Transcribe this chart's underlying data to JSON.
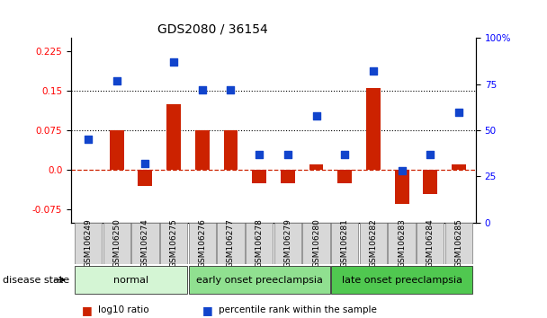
{
  "title": "GDS2080 / 36154",
  "samples": [
    "GSM106249",
    "GSM106250",
    "GSM106274",
    "GSM106275",
    "GSM106276",
    "GSM106277",
    "GSM106278",
    "GSM106279",
    "GSM106280",
    "GSM106281",
    "GSM106282",
    "GSM106283",
    "GSM106284",
    "GSM106285"
  ],
  "log10_ratio": [
    0.0,
    0.075,
    -0.03,
    0.125,
    0.075,
    0.075,
    -0.025,
    -0.025,
    0.01,
    -0.025,
    0.155,
    -0.065,
    -0.045,
    0.01
  ],
  "percentile_rank": [
    45,
    77,
    32,
    87,
    72,
    72,
    37,
    37,
    58,
    37,
    82,
    28,
    37,
    60
  ],
  "disease_groups": [
    {
      "label": "normal",
      "start": 0,
      "end": 4,
      "color": "#d4f5d4"
    },
    {
      "label": "early onset preeclampsia",
      "start": 4,
      "end": 9,
      "color": "#90e090"
    },
    {
      "label": "late onset preeclampsia",
      "start": 9,
      "end": 14,
      "color": "#50c850"
    }
  ],
  "ylim_left": [
    -0.1,
    0.25
  ],
  "ylim_right": [
    0,
    100
  ],
  "yticks_left": [
    -0.075,
    0.0,
    0.075,
    0.15,
    0.225
  ],
  "yticks_right": [
    0,
    25,
    50,
    75,
    100
  ],
  "ytick_labels_right": [
    "0",
    "25",
    "50",
    "75",
    "100%"
  ],
  "hlines": [
    0.075,
    0.15
  ],
  "bar_color": "#cc2200",
  "dot_color": "#1144cc",
  "zero_line_color": "#cc2200",
  "bg_color": "#ffffff",
  "bar_width": 0.5,
  "legend_items": [
    {
      "label": "log10 ratio",
      "color": "#cc2200"
    },
    {
      "label": "percentile rank within the sample",
      "color": "#1144cc"
    }
  ],
  "disease_state_label": "disease state",
  "title_fontsize": 10,
  "tick_fontsize": 7.5,
  "sample_fontsize": 6.5,
  "group_fontsize": 8,
  "legend_fontsize": 7.5
}
